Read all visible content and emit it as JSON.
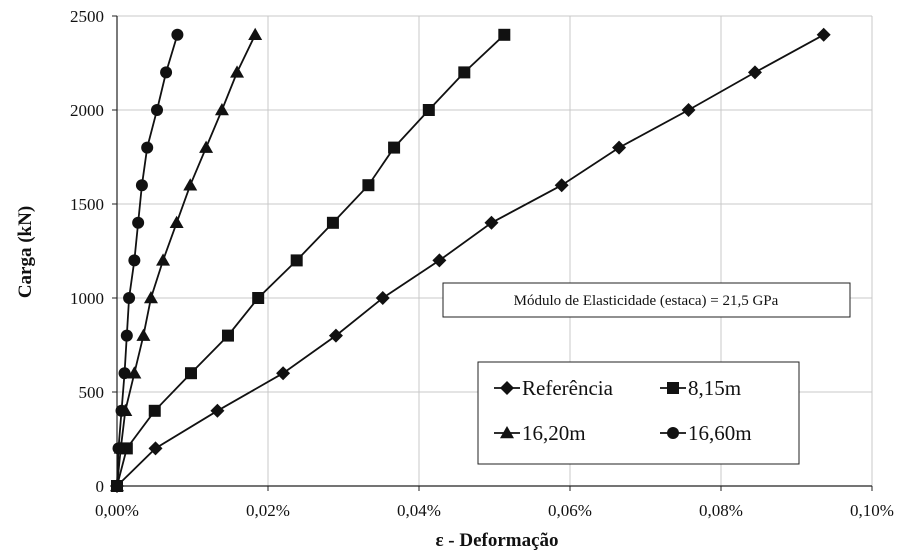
{
  "chart_data": {
    "type": "line",
    "title": "",
    "xlabel": "ε - Deformação",
    "ylabel": "Carga (kN)",
    "xlim": [
      0,
      0.1
    ],
    "ylim": [
      0,
      2500
    ],
    "x_ticks": [
      0,
      0.02,
      0.04,
      0.06,
      0.08,
      0.1
    ],
    "x_tick_labels": [
      "0,00%",
      "0,02%",
      "0,04%",
      "0,06%",
      "0,08%",
      "0,10%"
    ],
    "y_ticks": [
      0,
      500,
      1000,
      1500,
      2000,
      2500
    ],
    "y_tick_labels": [
      "0",
      "500",
      "1000",
      "1500",
      "2000",
      "2500"
    ],
    "grid": true,
    "legend_position": "bottom-right",
    "annotation": "Módulo de Elasticidade (estaca) = 21,5 GPa",
    "series": [
      {
        "name": "Referência",
        "marker": "diamond",
        "points": [
          [
            0.0,
            0
          ],
          [
            0.0051,
            200
          ],
          [
            0.0133,
            400
          ],
          [
            0.022,
            600
          ],
          [
            0.029,
            800
          ],
          [
            0.0352,
            1000
          ],
          [
            0.0427,
            1200
          ],
          [
            0.0496,
            1400
          ],
          [
            0.0589,
            1600
          ],
          [
            0.0665,
            1800
          ],
          [
            0.0757,
            2000
          ],
          [
            0.0845,
            2200
          ],
          [
            0.0936,
            2400
          ]
        ]
      },
      {
        "name": "8,15m",
        "marker": "square",
        "points": [
          [
            0.0,
            0
          ],
          [
            0.0013,
            200
          ],
          [
            0.005,
            400
          ],
          [
            0.0098,
            600
          ],
          [
            0.0147,
            800
          ],
          [
            0.0187,
            1000
          ],
          [
            0.0238,
            1200
          ],
          [
            0.0286,
            1400
          ],
          [
            0.0333,
            1600
          ],
          [
            0.0367,
            1800
          ],
          [
            0.0413,
            2000
          ],
          [
            0.046,
            2200
          ],
          [
            0.0513,
            2400
          ]
        ]
      },
      {
        "name": "16,20m",
        "marker": "triangle",
        "points": [
          [
            0.0,
            0
          ],
          [
            0.0005,
            200
          ],
          [
            0.0011,
            400
          ],
          [
            0.0023,
            600
          ],
          [
            0.0035,
            800
          ],
          [
            0.0045,
            1000
          ],
          [
            0.0061,
            1200
          ],
          [
            0.0079,
            1400
          ],
          [
            0.0097,
            1600
          ],
          [
            0.0118,
            1800
          ],
          [
            0.0139,
            2000
          ],
          [
            0.0159,
            2200
          ],
          [
            0.0183,
            2400
          ]
        ]
      },
      {
        "name": "16,60m",
        "marker": "circle",
        "points": [
          [
            0.0,
            0
          ],
          [
            0.0002,
            200
          ],
          [
            0.0006,
            400
          ],
          [
            0.001,
            600
          ],
          [
            0.0013,
            800
          ],
          [
            0.0016,
            1000
          ],
          [
            0.0023,
            1200
          ],
          [
            0.0028,
            1400
          ],
          [
            0.0033,
            1600
          ],
          [
            0.004,
            1800
          ],
          [
            0.0053,
            2000
          ],
          [
            0.0065,
            2200
          ],
          [
            0.008,
            2400
          ]
        ]
      }
    ]
  }
}
